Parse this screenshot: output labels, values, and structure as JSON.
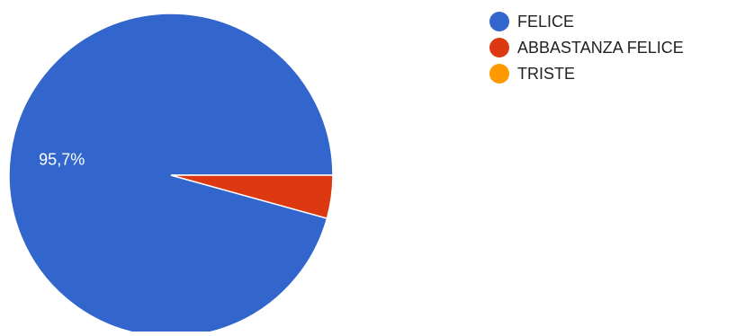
{
  "chart_data": {
    "type": "pie",
    "title": "",
    "categories": [
      "FELICE",
      "ABBASTANZA FELICE",
      "TRISTE"
    ],
    "values": [
      95.7,
      4.3,
      0
    ],
    "colors": [
      "#3366cc",
      "#dc3912",
      "#ff9900"
    ],
    "data_labels": [
      "95,7%",
      "",
      ""
    ],
    "legend": {
      "position": "right",
      "items": [
        "FELICE",
        "ABBASTANZA FELICE",
        "TRISTE"
      ]
    }
  }
}
